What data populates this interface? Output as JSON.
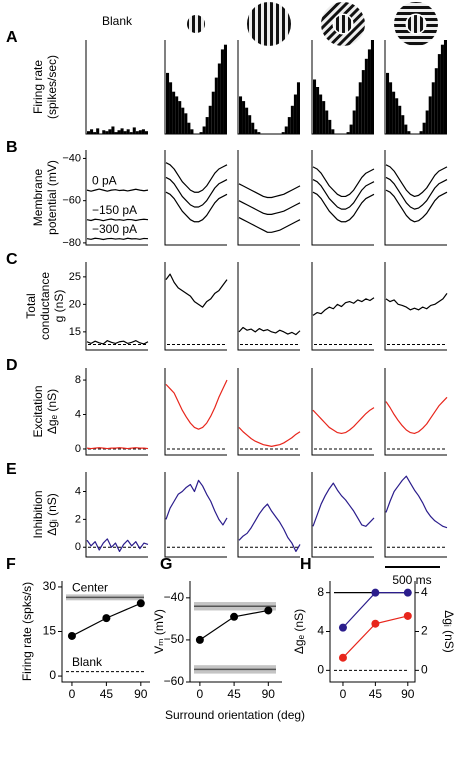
{
  "chart_data": [
    {
      "type": "trace-grid",
      "columns": [
        "Blank",
        null,
        null,
        null,
        null
      ],
      "scale_bar": "500 ms",
      "rows": [
        {
          "panel": "A",
          "type": "bar",
          "ylabel": [
            "Firing rate",
            "(spikes/sec)"
          ],
          "color": "#000000",
          "ylim": [
            0,
            100
          ],
          "columns": [
            [
              [
                3,
                5,
                2,
                6,
                0,
                4,
                3,
                5,
                8,
                2,
                4,
                6,
                3,
                5,
                2,
                7,
                3,
                4,
                5,
                3
              ]
            ],
            [
              [
                65,
                55,
                45,
                40,
                35,
                28,
                22,
                12,
                5,
                0,
                0,
                2,
                8,
                18,
                30,
                45,
                60,
                75,
                90,
                95
              ]
            ],
            [
              [
                40,
                35,
                28,
                20,
                12,
                5,
                2,
                0,
                0,
                0,
                0,
                0,
                0,
                0,
                2,
                8,
                18,
                30,
                42,
                55
              ]
            ],
            [
              [
                58,
                50,
                42,
                35,
                25,
                15,
                5,
                0,
                0,
                0,
                0,
                2,
                10,
                25,
                40,
                55,
                68,
                80,
                90,
                100
              ]
            ],
            [
              [
                65,
                55,
                45,
                38,
                30,
                20,
                10,
                3,
                0,
                0,
                0,
                3,
                12,
                25,
                40,
                55,
                70,
                85,
                95,
                100
              ]
            ]
          ]
        },
        {
          "panel": "B",
          "type": "line",
          "ylabel": [
            "Membrane",
            "potential (mV)"
          ],
          "color": "#000000",
          "ylim": [
            -81,
            -36
          ],
          "yticks": [
            {
              "value": -80,
              "label": "−80"
            },
            {
              "value": -60,
              "label": "−60"
            },
            {
              "value": -40,
              "label": "−40"
            }
          ],
          "trace_labels": [
            "0 pA",
            "−150 pA",
            "−300 pA"
          ],
          "columns": [
            [
              [
                -55,
                -55.5,
                -55,
                -54.5,
                -55,
                -55.5,
                -55,
                -54.8,
                -55.2,
                -55,
                -55.4,
                -55,
                -54.6,
                -55,
                -55.3,
                -55
              ],
              [
                -69,
                -69.4,
                -68.8,
                -69,
                -69.5,
                -69,
                -68.7,
                -69.2,
                -69,
                -69.3,
                -68.9,
                -69,
                -69.4,
                -69,
                -68.8,
                -69
              ],
              [
                -78,
                -78.3,
                -77.8,
                -78,
                -78.4,
                -78,
                -77.9,
                -78.2,
                -78,
                -78.3,
                -77.8,
                -78.1,
                -78,
                -78.3,
                -77.9,
                -78
              ]
            ],
            [
              [
                -42,
                -43,
                -45,
                -48,
                -51,
                -53,
                -55,
                -56,
                -56,
                -55,
                -53,
                -50,
                -47,
                -45,
                -44,
                -43
              ],
              [
                -49,
                -50,
                -52,
                -55,
                -58,
                -60,
                -62,
                -63,
                -63,
                -62,
                -60,
                -57,
                -54,
                -52,
                -51,
                -50
              ],
              [
                -56,
                -57,
                -59,
                -62,
                -65,
                -67,
                -69,
                -70,
                -70,
                -69,
                -67,
                -64,
                -61,
                -59,
                -58,
                -57
              ]
            ],
            [
              [
                -52,
                -53,
                -54,
                -55,
                -56,
                -57,
                -58,
                -58.5,
                -58.5,
                -58,
                -57.5,
                -57,
                -56,
                -55,
                -54,
                -53
              ],
              [
                -60,
                -61,
                -62,
                -63,
                -64,
                -65,
                -66,
                -66.5,
                -66.5,
                -66,
                -65.5,
                -65,
                -64,
                -63,
                -62,
                -61
              ],
              [
                -68,
                -69,
                -70,
                -71,
                -72,
                -73,
                -74,
                -75,
                -75,
                -74.5,
                -74,
                -73,
                -72,
                -71,
                -70,
                -69
              ]
            ],
            [
              [
                -44,
                -45,
                -47,
                -50,
                -53,
                -55,
                -57,
                -58,
                -58,
                -57,
                -55,
                -52,
                -49,
                -47,
                -46,
                -45
              ],
              [
                -50,
                -51,
                -53,
                -56,
                -59,
                -61,
                -63,
                -64,
                -64,
                -63,
                -61,
                -58,
                -55,
                -53,
                -52,
                -51
              ],
              [
                -56,
                -57,
                -59,
                -62,
                -65,
                -67,
                -69,
                -70,
                -70,
                -69,
                -67,
                -64,
                -61,
                -59,
                -58,
                -57
              ]
            ],
            [
              [
                -43,
                -44,
                -46,
                -49,
                -52,
                -55,
                -57,
                -58,
                -57.5,
                -56,
                -54,
                -51,
                -48,
                -46,
                -45,
                -44
              ],
              [
                -49,
                -50,
                -52,
                -55,
                -58,
                -61,
                -63,
                -64,
                -63.5,
                -62,
                -60,
                -57,
                -54,
                -52,
                -51,
                -50
              ],
              [
                -55,
                -56,
                -58,
                -61,
                -64,
                -67,
                -69,
                -70,
                -69.5,
                -68,
                -66,
                -63,
                -60,
                -58,
                -57,
                -56
              ]
            ]
          ]
        },
        {
          "panel": "C",
          "type": "line",
          "ylabel": [
            "Total",
            "conductance",
            "g (nS)"
          ],
          "color": "#000000",
          "ylim": [
            11.7,
            27.7
          ],
          "yticks": [
            15,
            20,
            25
          ],
          "baseline": 12.7,
          "columns": [
            [
              [
                13.2,
                12.9,
                13.3,
                13.0,
                12.8,
                13.4,
                13.1,
                12.9,
                13.2,
                13.3,
                12.9,
                13.1,
                13.4,
                13.0,
                12.8,
                13.2
              ]
            ],
            [
              [
                24.5,
                25.5,
                24,
                23,
                22.5,
                22,
                21.5,
                20.5,
                20,
                19.5,
                20.5,
                21,
                22,
                22.5,
                23.5,
                24.5
              ]
            ],
            [
              [
                15,
                15.8,
                15.3,
                15.5,
                15,
                15.6,
                15.2,
                15.4,
                15,
                14.8,
                15.3,
                15,
                14.6,
                14.9,
                14.5,
                15.2
              ]
            ],
            [
              [
                18,
                18.5,
                18.3,
                19,
                19.5,
                19.2,
                20,
                19.6,
                20.3,
                20.5,
                20.2,
                20.8,
                20.5,
                21,
                20.7,
                21.2
              ]
            ],
            [
              [
                21,
                20.5,
                20.8,
                20,
                19.8,
                19.5,
                19,
                19.3,
                19,
                19.5,
                19.2,
                19.8,
                20,
                20.5,
                21,
                22
              ]
            ]
          ]
        },
        {
          "panel": "D",
          "type": "line",
          "ylabel": [
            "Excitation",
            "Δgₑ (nS)"
          ],
          "color": "#e8261c",
          "ylim": [
            -0.7,
            9.4
          ],
          "yticks": [
            0,
            4,
            8
          ],
          "baseline": 0,
          "columns": [
            [
              [
                0.1,
                0.05,
                0.1,
                0.15,
                0.1,
                0.05,
                0.1,
                0.1,
                0.15,
                0.1,
                0.05,
                0.1,
                0.15,
                0.1,
                0.1,
                0.05
              ]
            ],
            [
              [
                7.5,
                7,
                6.5,
                5.5,
                4.5,
                3.7,
                3,
                2.5,
                2.3,
                2.5,
                3,
                3.8,
                4.8,
                6,
                7,
                8
              ]
            ],
            [
              [
                2.5,
                2,
                1.6,
                1.2,
                0.9,
                0.7,
                0.5,
                0.4,
                0.3,
                0.4,
                0.5,
                0.7,
                1,
                1.3,
                1.7,
                2
              ]
            ],
            [
              [
                4.5,
                4,
                3.5,
                3,
                2.5,
                2.2,
                1.9,
                1.8,
                1.9,
                2.2,
                2.6,
                3.1,
                3.6,
                4.1,
                4.5,
                4.8
              ]
            ],
            [
              [
                5.5,
                4.8,
                4,
                3.3,
                2.7,
                2.2,
                1.9,
                1.8,
                2,
                2.4,
                2.9,
                3.6,
                4.3,
                5,
                5.5,
                6
              ]
            ]
          ]
        },
        {
          "panel": "E",
          "type": "line",
          "ylabel": [
            "Inhibition",
            "Δgᵢ (nS)"
          ],
          "color": "#2b1d8c",
          "ylim": [
            -0.7,
            5.4
          ],
          "yticks": [
            0,
            2,
            4
          ],
          "baseline": 0,
          "columns": [
            [
              [
                0.5,
                0.1,
                0.4,
                -0.2,
                0.3,
                0.6,
                0,
                0.3,
                -0.3,
                0.2,
                0.5,
                0.1,
                0.4,
                -0.1,
                0.3,
                0.2
              ]
            ],
            [
              [
                2,
                2.8,
                3.3,
                3.8,
                4,
                4.3,
                4.5,
                4,
                4.8,
                4.4,
                3.8,
                3.3,
                2.6,
                2,
                1.6,
                2.1
              ]
            ],
            [
              [
                0.5,
                0.8,
                1,
                1.4,
                1.9,
                2.4,
                2.8,
                3.1,
                2.6,
                2.2,
                1.8,
                1.3,
                0.7,
                0.3,
                -0.3,
                0.2
              ]
            ],
            [
              [
                1.5,
                2.3,
                3.1,
                3.7,
                4.2,
                4.6,
                4.1,
                3.7,
                3.4,
                3,
                2.6,
                2.1,
                1.6,
                1.5,
                1.8,
                2.1
              ]
            ],
            [
              [
                2.5,
                3.3,
                4,
                4.4,
                4.8,
                5.1,
                4.6,
                4.1,
                3.7,
                3.2,
                2.6,
                2.2,
                1.9,
                1.7,
                1.5,
                1.4
              ]
            ]
          ]
        }
      ]
    },
    {
      "panel": "F",
      "type": "line",
      "ylabel": "Firing rate (spks/s)",
      "x": [
        0,
        45,
        90
      ],
      "xlim": [
        -13,
        102
      ],
      "xticks": [
        0,
        45,
        90
      ],
      "ylim": [
        -2,
        32
      ],
      "yticks": [
        0,
        15,
        30
      ],
      "series": [
        {
          "color": "#000000",
          "values": [
            13.5,
            19.5,
            24.5
          ]
        }
      ],
      "references": [
        {
          "label": "Center",
          "value": 26.5,
          "band": [
            25.5,
            27.5
          ],
          "style": "band"
        },
        {
          "label": "Blank",
          "value": 1.5,
          "style": "dashed"
        }
      ]
    },
    {
      "panel": "G",
      "type": "line",
      "ylabel": "Vₘ (mV)",
      "xlabel": "Surround orientation (deg)",
      "x": [
        0,
        45,
        90
      ],
      "xlim": [
        -13,
        108
      ],
      "xticks": [
        0,
        45,
        90
      ],
      "ylim": [
        -60,
        -36
      ],
      "yticks": [
        {
          "value": -60,
          "label": "−60"
        },
        {
          "value": -50,
          "label": "−50"
        },
        {
          "value": -40,
          "label": "−40"
        }
      ],
      "series": [
        {
          "color": "#000000",
          "values": [
            -50,
            -44.5,
            -43
          ]
        }
      ],
      "references": [
        {
          "value": -42,
          "band": [
            -43,
            -41
          ],
          "style": "band"
        },
        {
          "value": -57,
          "band": [
            -58,
            -56
          ],
          "style": "band"
        }
      ]
    },
    {
      "panel": "H",
      "type": "line",
      "ylabel": "Δgₑ (nS)",
      "y2label": "Δgᵢ (nS)",
      "x": [
        0,
        45,
        90
      ],
      "xlim": [
        -18,
        100
      ],
      "xticks": [
        0,
        45,
        90
      ],
      "ylim": [
        -1.2,
        9.2
      ],
      "yticks": [
        0,
        4,
        8
      ],
      "y2lim": [
        -0.6,
        4.6
      ],
      "y2ticks": [
        0,
        2,
        4
      ],
      "series": [
        {
          "color": "#e8261c",
          "values": [
            1.3,
            4.8,
            5.6
          ]
        },
        {
          "color": "#2b1d8c",
          "axis": "y2",
          "values": [
            2.2,
            4,
            4
          ]
        }
      ],
      "references": [
        {
          "value": 8,
          "style": "solid"
        },
        {
          "value": 0,
          "style": "dashed"
        }
      ]
    }
  ]
}
